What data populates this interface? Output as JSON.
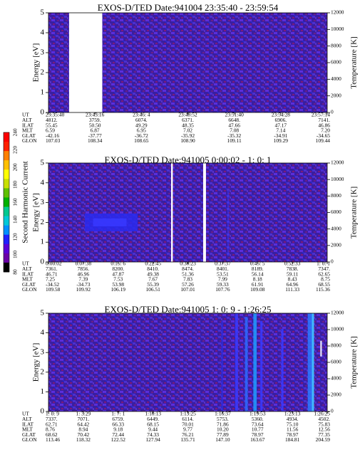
{
  "chart_data": {
    "type": "heatmap",
    "colorbar": {
      "label": "Second Harmonic Current",
      "ticks": [
        80,
        100,
        120,
        140,
        160,
        180,
        200,
        220,
        240
      ],
      "colors": [
        "#000000",
        "#6a00a6",
        "#5a00d8",
        "#2020ff",
        "#0090ff",
        "#00c8d8",
        "#00c890",
        "#00b000",
        "#60c000",
        "#c8e000",
        "#ffff00",
        "#ffc000",
        "#ff8000",
        "#ff2000",
        "#ff0000"
      ]
    },
    "panels": [
      {
        "title": "EXOS-D/TED   Date:941004  23:35:40 - 23:59:54",
        "ylabel": "Energy [eV]",
        "ylabel_right": "Temperature [K]",
        "ylim": [
          0,
          5
        ],
        "y_ticks": [
          "0",
          "1",
          "2",
          "3",
          "4",
          "5"
        ],
        "y2_ticks": [
          "0",
          "2000",
          "4000",
          "6000",
          "8000",
          "10000",
          "12000"
        ],
        "gaps": [
          [
            0.074,
            0.193
          ]
        ],
        "blobs": [],
        "streaks": [],
        "table": {
          "labels": [
            "UT",
            "ALT",
            "ILAT",
            "MLT",
            "GLAT",
            "GLON"
          ],
          "columns": [
            [
              "23:35:40",
              "4812.",
              "55.45",
              "6.59",
              "-42.16",
              "107.03"
            ],
            [
              "23:43:16",
              "3759.",
              "50.50",
              "6.87",
              "-37.77",
              "108.34"
            ],
            [
              "23:46: 4",
              "6074.",
              "49.29",
              "6.95",
              "-36.72",
              "108.65"
            ],
            [
              "23:48:52",
              "6371.",
              "48.35",
              "7.02",
              "-35.92",
              "108.90"
            ],
            [
              "23:51:40",
              "6648.",
              "47.66",
              "7.08",
              "-35.32",
              "109.11"
            ],
            [
              "23:54:28",
              "6906.",
              "47.17",
              "7.14",
              "-34.91",
              "109.29"
            ],
            [
              "23:57:14",
              "7141.",
              "46.86",
              "7.20",
              "-34.65",
              "109.44"
            ]
          ]
        }
      },
      {
        "title": "EXOS-D/TED   Date:941005  0:00:02 - 1: 0: 1",
        "ylabel": "Energy [eV]",
        "ylabel_right": "Temperature [K]",
        "ylim": [
          0,
          5
        ],
        "y_ticks": [
          "0",
          "1",
          "2",
          "3",
          "4",
          "5"
        ],
        "y2_ticks": [
          "0",
          "2000",
          "4000",
          "6000",
          "8000",
          "10000",
          "12000"
        ],
        "gaps": [
          [
            0.44,
            0.446
          ],
          [
            0.555,
            0.565
          ]
        ],
        "blobs": [
          {
            "x0": 0.13,
            "x1": 0.32,
            "y0": 1.55,
            "y1": 2.45,
            "color": "#2a2aee"
          },
          {
            "x0": 0.16,
            "x1": 0.28,
            "y0": 1.8,
            "y1": 2.2,
            "color": "#3838ff"
          }
        ],
        "streaks": [
          {
            "x": 0.643,
            "w": 0.003,
            "y0": 0.3,
            "y1": 3.6,
            "color": "#3a3aff"
          }
        ],
        "table": {
          "labels": [
            "UT",
            "ALT",
            "ILAT",
            "MLT",
            "GLAT",
            "GLON"
          ],
          "columns": [
            [
              "0:00:02",
              "7361.",
              "46.71",
              "7.25",
              "-34.52",
              "109.58"
            ],
            [
              "0:07:38",
              "7856.",
              "46.96",
              "7.39",
              "-34.73",
              "109.92"
            ],
            [
              "0:15: 6",
              "8200.",
              "47.87",
              "7.53",
              "53.98",
              "106.19"
            ],
            [
              "0:22:45",
              "8410.",
              "49.38",
              "7.67",
              "55.39",
              "106.51"
            ],
            [
              "0:30:23",
              "8474.",
              "51.36",
              "7.83",
              "57.26",
              "107.01"
            ],
            [
              "0:37:37",
              "8401.",
              "53.51",
              "7.99",
              "59.33",
              "107.76"
            ],
            [
              "0:45: 5",
              "8189.",
              "56.14",
              "8.18",
              "61.91",
              "109.08"
            ],
            [
              "0:52:33",
              "7838.",
              "59.11",
              "8.43",
              "64.96",
              "111.33"
            ],
            [
              "1: 0: 1",
              "7347.",
              "62.65",
              "8.75",
              "68.55",
              "115.36"
            ]
          ]
        }
      },
      {
        "title": "EXOS-D/TED   Date:941005  1: 0: 9 - 1:26:25",
        "ylabel": "Energy [eV]",
        "ylabel_right": "Temperature [K]",
        "ylim": [
          0,
          5
        ],
        "y_ticks": [
          "0",
          "1",
          "2",
          "3",
          "4",
          "5"
        ],
        "y2_ticks": [
          "0",
          "2000",
          "4000",
          "6000",
          "8000",
          "10000",
          "12000"
        ],
        "gaps": [],
        "blobs": [],
        "streaks": [
          {
            "x": 0.62,
            "w": 0.006,
            "y0": 0.0,
            "y1": 4.6,
            "color": "#2b2bdd"
          },
          {
            "x": 0.67,
            "w": 0.01,
            "y0": 0.0,
            "y1": 5.0,
            "color": "#3a3aff"
          },
          {
            "x": 0.705,
            "w": 0.01,
            "y0": 0.0,
            "y1": 4.8,
            "color": "#2a6cff"
          },
          {
            "x": 0.735,
            "w": 0.012,
            "y0": 0.0,
            "y1": 5.0,
            "color": "#1e9cff"
          },
          {
            "x": 0.76,
            "w": 0.008,
            "y0": 0.0,
            "y1": 4.6,
            "color": "#3a3aff"
          },
          {
            "x": 0.835,
            "w": 0.008,
            "y0": 0.0,
            "y1": 4.2,
            "color": "#3a3aff"
          },
          {
            "x": 0.93,
            "w": 0.02,
            "y0": 0.0,
            "y1": 5.0,
            "color": "#2a7aff"
          },
          {
            "x": 0.945,
            "w": 0.008,
            "y0": 0.0,
            "y1": 5.0,
            "color": "#45c8ff"
          },
          {
            "x": 0.975,
            "w": 0.006,
            "y0": 2.8,
            "y1": 3.6,
            "color": "#ffffff"
          }
        ],
        "table": {
          "labels": [
            "UT",
            "ALT",
            "ILAT",
            "MLT",
            "GLAT",
            "GLON"
          ],
          "columns": [
            [
              "1: 0: 9",
              "7337.",
              "62.71",
              "8.76",
              "68.62",
              "113.46"
            ],
            [
              "1: 3:29",
              "7071.",
              "64.42",
              "8.94",
              "70.42",
              "118.32"
            ],
            [
              "1: 7: 1",
              "6759.",
              "66.33",
              "9.18",
              "72.44",
              "122.52"
            ],
            [
              "1:10:13",
              "6449.",
              "68.15",
              "9.44",
              "74.33",
              "127.94"
            ],
            [
              "1:13:25",
              "6114.",
              "70.01",
              "9.77",
              "76.21",
              "135.71"
            ],
            [
              "1:16:37",
              "5753.",
              "71.86",
              "10.20",
              "77.89",
              "147.10"
            ],
            [
              "1:19:53",
              "5360.",
              "73.64",
              "10.77",
              "78.97",
              "163.67"
            ],
            [
              "1:23:13",
              "4934.",
              "75.10",
              "11.56",
              "78.97",
              "184.81"
            ],
            [
              "1:26:25",
              "4502.",
              "75.83",
              "12.56",
              "77.35",
              "204.59"
            ]
          ]
        }
      }
    ]
  }
}
